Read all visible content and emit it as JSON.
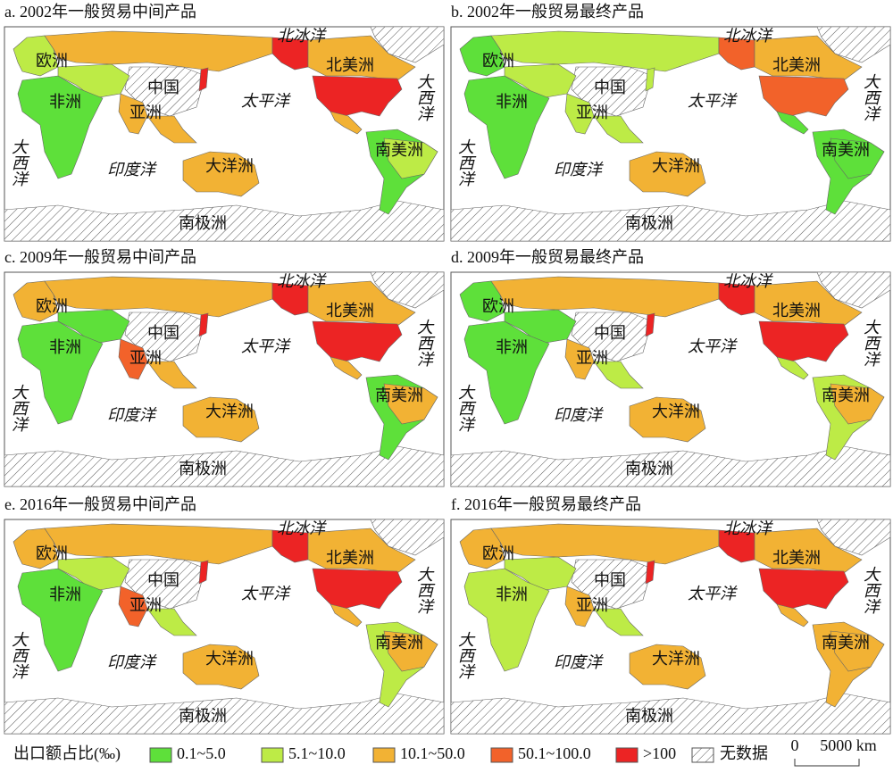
{
  "panels": [
    {
      "title": "a. 2002年一般贸易中间产品",
      "labels": [
        "北冰洋",
        "北美洲",
        "大西洋",
        "欧洲",
        "中国",
        "非洲",
        "亚洲",
        "太平洋",
        "大西洋",
        "印度洋",
        "大洋洲",
        "南美洲",
        "南极洲"
      ]
    },
    {
      "title": "b. 2002年一般贸易最终产品",
      "labels": [
        "北冰洋",
        "北美洲",
        "大西洋",
        "欧洲",
        "中国",
        "非洲",
        "亚洲",
        "太平洋",
        "大西洋",
        "印度洋",
        "大洋洲",
        "南美洲",
        "南极洲"
      ]
    },
    {
      "title": "c. 2009年一般贸易中间产品",
      "labels": [
        "北冰洋",
        "北美洲",
        "大西洋",
        "欧洲",
        "中国",
        "非洲",
        "亚洲",
        "太平洋",
        "大西洋",
        "印度洋",
        "大洋洲",
        "南美洲",
        "南极洲"
      ]
    },
    {
      "title": "d. 2009年一般贸易最终产品",
      "labels": [
        "北冰洋",
        "北美洲",
        "大西洋",
        "欧洲",
        "中国",
        "非洲",
        "亚洲",
        "太平洋",
        "大西洋",
        "印度洋",
        "大洋洲",
        "南美洲",
        "南极洲"
      ]
    },
    {
      "title": "e. 2016年一般贸易中间产品",
      "labels": [
        "北冰洋",
        "北美洲",
        "大西洋",
        "欧洲",
        "中国",
        "非洲",
        "亚洲",
        "太平洋",
        "大西洋",
        "印度洋",
        "大洋洲",
        "南美洲",
        "南极洲"
      ]
    },
    {
      "title": "f. 2016年一般贸易最终产品",
      "labels": [
        "北冰洋",
        "北美洲",
        "大西洋",
        "欧洲",
        "中国",
        "非洲",
        "亚洲",
        "太平洋",
        "大西洋",
        "印度洋",
        "大洋洲",
        "南美洲",
        "南极洲"
      ]
    }
  ],
  "legend": {
    "title": "出口额占比(‰)",
    "items": [
      {
        "label": "0.1~5.0",
        "color": "#5ee03a"
      },
      {
        "label": "5.1~10.0",
        "color": "#bdeb46"
      },
      {
        "label": "10.1~50.0",
        "color": "#f2b234"
      },
      {
        "label": "50.1~100.0",
        "color": "#f2622a"
      },
      {
        "label": ">100",
        "color": "#ec2424"
      }
    ],
    "no_data": "无数据"
  },
  "scale_bar": {
    "labels": [
      "0",
      "5000 km"
    ]
  }
}
